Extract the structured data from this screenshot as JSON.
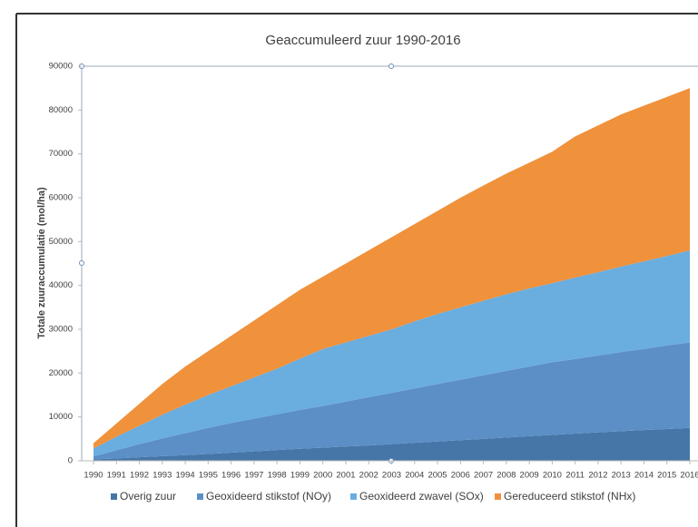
{
  "chart_data": {
    "type": "area",
    "stacked": true,
    "title": "Geaccumuleerd zuur 1990-2016",
    "y_label": "Totale zuuraccumulatie (mol/ha)",
    "categories": [
      "1990",
      "1991",
      "1992",
      "1993",
      "1994",
      "1995",
      "1996",
      "1997",
      "1998",
      "1999",
      "2000",
      "2001",
      "2002",
      "2003",
      "2004",
      "2005",
      "2006",
      "2007",
      "2008",
      "2009",
      "2010",
      "2011",
      "2012",
      "2013",
      "2014",
      "2015",
      "2016"
    ],
    "series": [
      {
        "name": "Overig zuur",
        "color": "#4676a8",
        "values": [
          300,
          550,
          800,
          1050,
          1300,
          1550,
          1850,
          2150,
          2450,
          2750,
          3000,
          3250,
          3500,
          3800,
          4100,
          4400,
          4700,
          5000,
          5300,
          5600,
          5900,
          6200,
          6500,
          6750,
          7000,
          7250,
          7500
        ]
      },
      {
        "name": "Geoxideerd stikstof (NOy)",
        "color": "#5b8fc6",
        "values": [
          700,
          1850,
          3000,
          4050,
          5000,
          5950,
          6750,
          7450,
          8150,
          8850,
          9500,
          10250,
          11000,
          11700,
          12400,
          13100,
          13800,
          14500,
          15200,
          15900,
          16600,
          17000,
          17500,
          18050,
          18500,
          19050,
          19500
        ]
      },
      {
        "name": "Geoxideerd zwavel (SOx)",
        "color": "#6aaddf",
        "values": [
          1800,
          3100,
          4200,
          5400,
          6500,
          7500,
          8400,
          9400,
          10400,
          11700,
          13000,
          13500,
          14000,
          14500,
          15300,
          16000,
          16500,
          17000,
          17500,
          17800,
          18000,
          18600,
          19000,
          19500,
          20000,
          20400,
          21000
        ]
      },
      {
        "name": "Gereduceerd stikstof (NHx)",
        "color": "#f0913b",
        "values": [
          1200,
          3000,
          5000,
          7000,
          8700,
          10000,
          11500,
          13000,
          14500,
          15700,
          16500,
          18000,
          19500,
          21000,
          22200,
          23500,
          25000,
          26300,
          27500,
          28700,
          30000,
          32200,
          33500,
          34700,
          35500,
          36300,
          37000
        ]
      }
    ],
    "ylim": [
      0,
      90000
    ],
    "yticks": [
      0,
      10000,
      20000,
      30000,
      40000,
      50000,
      60000,
      70000,
      80000,
      90000
    ],
    "legend": "bottom"
  }
}
